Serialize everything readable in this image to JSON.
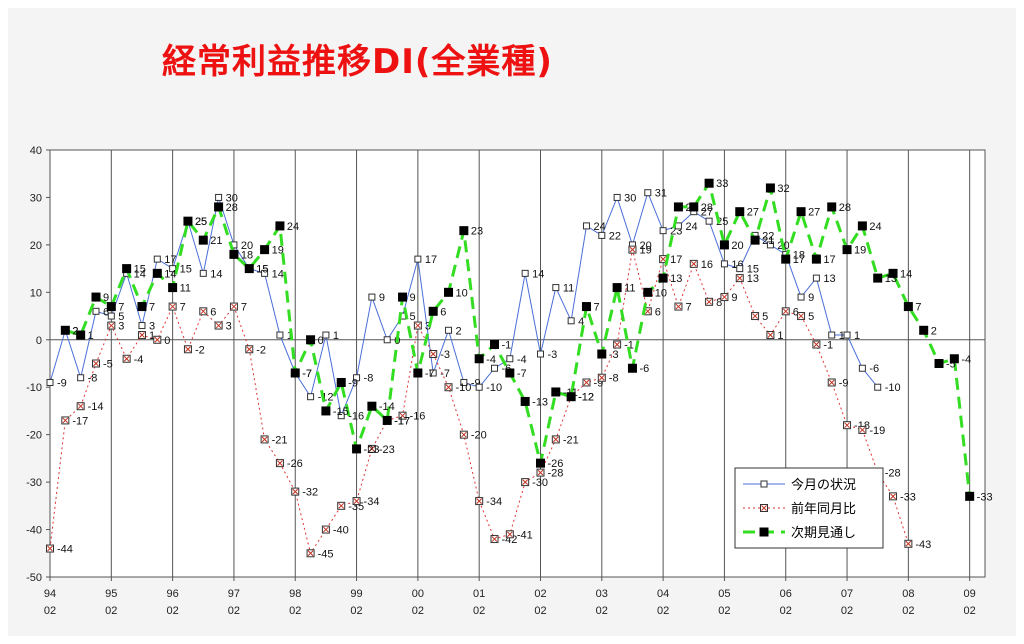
{
  "title": "経常利益推移DI(全業種)",
  "chart_data": {
    "type": "line",
    "title": "経常利益推移DI(全業種)",
    "xlabel": "",
    "ylabel": "",
    "ylim": [
      -50,
      40
    ],
    "yticks": [
      40,
      30,
      20,
      10,
      0,
      -10,
      -20,
      -30,
      -40,
      -50
    ],
    "grid": "vertical lines at each year; horizontal line at 0",
    "legend_position": "bottom-right",
    "x_start": 1994.0,
    "x_step": 0.25,
    "xtick_labels": [
      {
        "year": "94",
        "month": "02"
      },
      {
        "year": "95",
        "month": "02"
      },
      {
        "year": "96",
        "month": "02"
      },
      {
        "year": "97",
        "month": "02"
      },
      {
        "year": "98",
        "month": "02"
      },
      {
        "year": "99",
        "month": "02"
      },
      {
        "year": "00",
        "month": "02"
      },
      {
        "year": "01",
        "month": "02"
      },
      {
        "year": "02",
        "month": "02"
      },
      {
        "year": "03",
        "month": "02"
      },
      {
        "year": "04",
        "month": "02"
      },
      {
        "year": "05",
        "month": "02"
      },
      {
        "year": "06",
        "month": "02"
      },
      {
        "year": "07",
        "month": "02"
      },
      {
        "year": "08",
        "month": "02"
      },
      {
        "year": "09",
        "month": "02"
      }
    ],
    "series": [
      {
        "name": "今月の状況",
        "color": "#4a6fd8",
        "line_style": "solid",
        "marker": "open-square",
        "start_index": 0,
        "values": [
          -9,
          2,
          -8,
          6,
          5,
          14,
          3,
          17,
          15,
          25,
          14,
          30,
          20,
          15,
          14,
          1,
          -7,
          -12,
          1,
          -16,
          -8,
          9,
          0,
          5,
          17,
          -7,
          2,
          -9,
          -10,
          -6,
          -4,
          14,
          -3,
          11,
          4,
          24,
          22,
          30,
          20,
          31,
          23,
          24,
          27,
          25,
          16,
          15,
          22,
          20,
          18,
          9,
          13,
          1,
          1,
          -6,
          -10
        ],
        "labels": [
          "-9",
          "2",
          "-8",
          "6",
          "5",
          "14",
          "3",
          "17",
          "15",
          "25",
          "14",
          "30",
          "20",
          "15",
          "14",
          "1",
          "-7",
          "-12",
          "1",
          "-16",
          "-8",
          "9",
          "0",
          "5",
          "17",
          "-7",
          "2",
          "-9",
          "-10",
          "-6",
          "-4",
          "14",
          "-3",
          "11",
          "4",
          "24",
          "22",
          "30",
          "20",
          "31",
          "23",
          "24",
          "27",
          "25",
          "16",
          "15",
          "22",
          "20",
          "18",
          "9",
          "13",
          "1",
          "1",
          "-6",
          "-10"
        ]
      },
      {
        "name": "前年同月比",
        "color": "#dd3333",
        "line_style": "dotted",
        "marker": "x-square",
        "start_index": 0,
        "values": [
          -44,
          -17,
          -14,
          -5,
          3,
          -4,
          1,
          0,
          7,
          -2,
          6,
          3,
          7,
          -2,
          -21,
          -26,
          -32,
          -45,
          -40,
          -35,
          -34,
          -23,
          -17,
          -16,
          3,
          -3,
          -10,
          -20,
          -34,
          -42,
          -41,
          -30,
          -28,
          -21,
          -12,
          -9,
          -8,
          -1,
          19,
          6,
          17,
          7,
          16,
          8,
          9,
          13,
          5,
          1,
          6,
          5,
          -1,
          -9,
          -18,
          -19,
          -28,
          -33,
          -43
        ],
        "labels": [
          "-44",
          "-17",
          "-14",
          "-5",
          "3",
          "-4",
          "1",
          "0",
          "7",
          "-2",
          "6",
          "3",
          "7",
          "-2",
          "-21",
          "-26",
          "-32",
          "-45",
          "-40",
          "-35",
          "-34",
          "-23",
          "-17",
          "-16",
          "3",
          "-3",
          "-10",
          "-20",
          "-34",
          "-42",
          "-41",
          "-30",
          "-28",
          "-21",
          "-12",
          "-9",
          "-8",
          "-1",
          "19",
          "6",
          "17",
          "7",
          "16",
          "8",
          "9",
          "13",
          "5",
          "1",
          "6",
          "5",
          "-1",
          "-9",
          "-18",
          "-19",
          "-28",
          "-33",
          "-43"
        ]
      },
      {
        "name": "次期見通し",
        "color": "#33dd22",
        "line_style": "dashed",
        "marker": "filled-square",
        "start_index": 1,
        "values": [
          2,
          1,
          9,
          7,
          15,
          7,
          14,
          11,
          25,
          21,
          28,
          18,
          15,
          19,
          24,
          -7,
          0,
          -15,
          -9,
          -23,
          -14,
          -17,
          9,
          -7,
          6,
          10,
          23,
          -4,
          -1,
          -7,
          -13,
          -26,
          -11,
          -12,
          7,
          -3,
          11,
          -6,
          10,
          13,
          28,
          28,
          33,
          20,
          27,
          21,
          32,
          17,
          27,
          17,
          28,
          19,
          24,
          13,
          14,
          7,
          2,
          -5,
          -4,
          -33
        ],
        "labels": [
          "2",
          "1",
          "9",
          "7",
          "15",
          "7",
          "14",
          "11",
          "25",
          "21",
          "28",
          "18",
          "15",
          "19",
          "24",
          "-7",
          "0",
          "-15",
          "-9",
          "-23",
          "-14",
          "-17",
          "9",
          "-7",
          "6",
          "10",
          "23",
          "-4",
          "-1",
          "-7",
          "-13",
          "-26",
          "-11",
          "-12",
          "7",
          "-3",
          "11",
          "-6",
          "10",
          "13",
          "28",
          "28",
          "33",
          "20",
          "27",
          "21",
          "32",
          "17",
          "27",
          "17",
          "28",
          "19",
          "24",
          "13",
          "14",
          "7",
          "2",
          "-5",
          "-4",
          "-33"
        ]
      }
    ]
  }
}
